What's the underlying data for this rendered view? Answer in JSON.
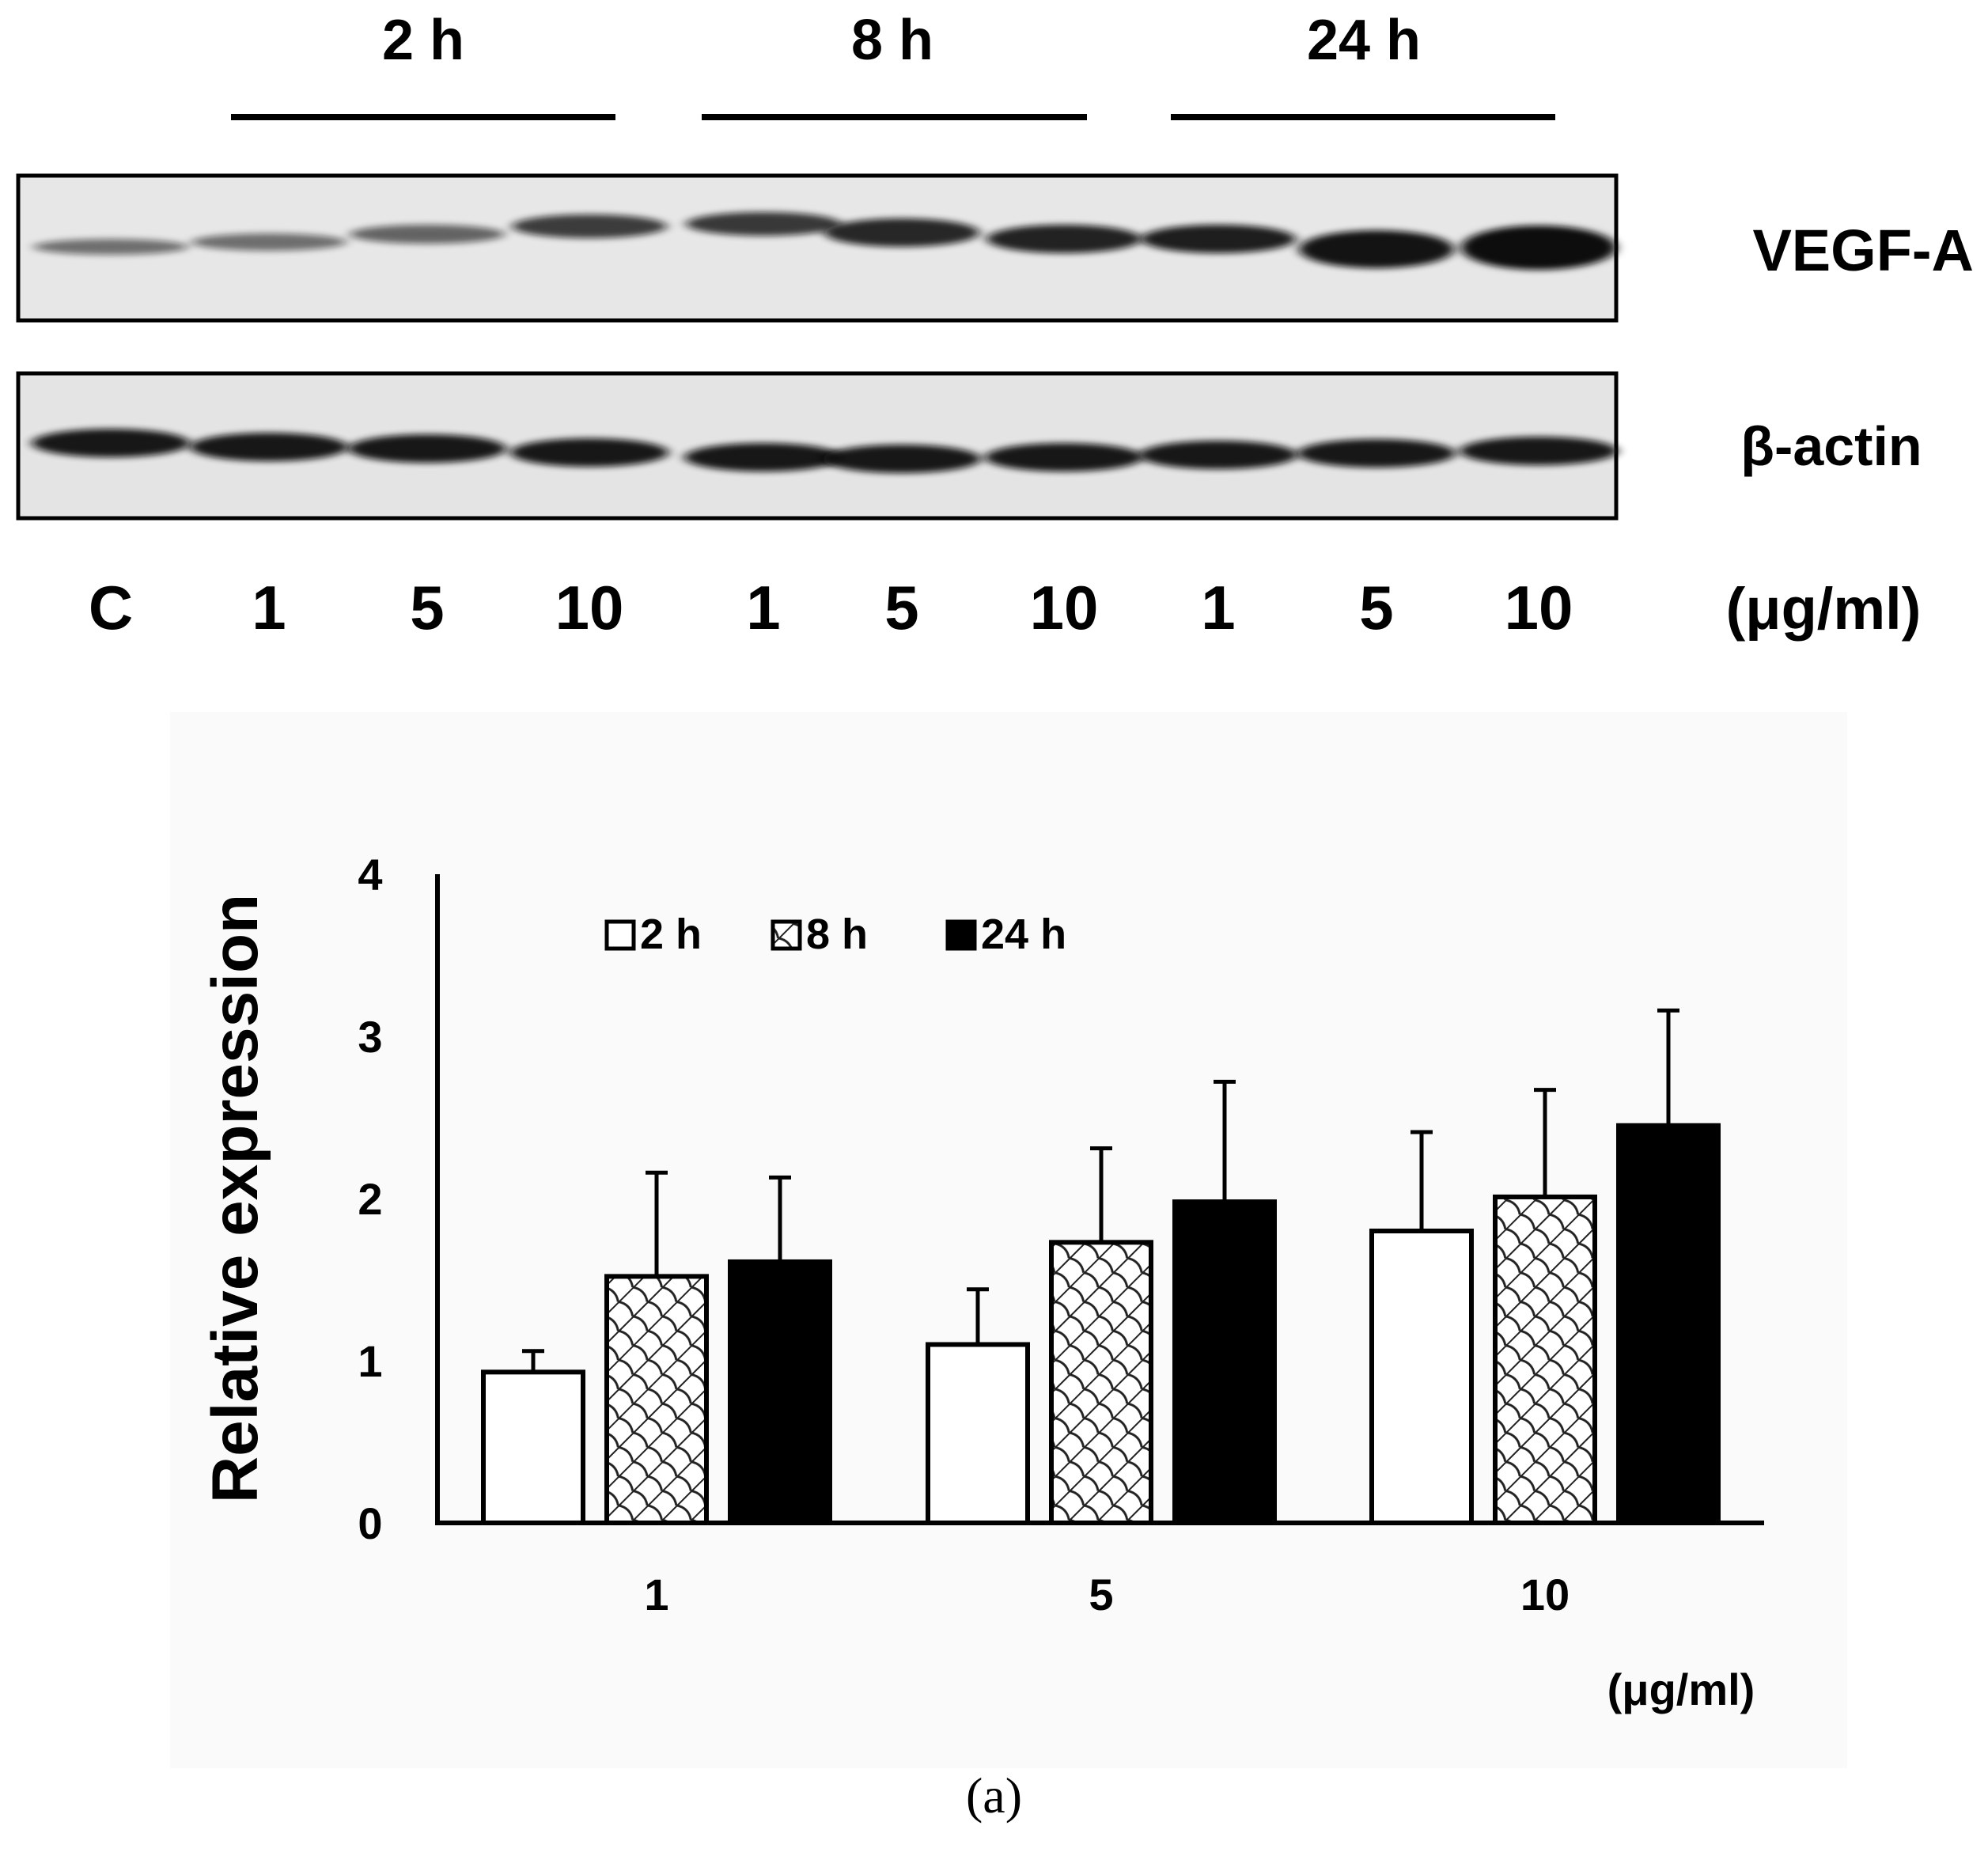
{
  "blot": {
    "time_groups": [
      "2 h",
      "8 h",
      "24 h"
    ],
    "proteins": [
      "VEGF-A",
      "β-actin"
    ],
    "lanes": [
      "C",
      "1",
      "5",
      "10",
      "1",
      "5",
      "10",
      "1",
      "5",
      "10"
    ],
    "unit": "(μg/ml)"
  },
  "chart_data": {
    "type": "bar",
    "title": "",
    "xlabel": "",
    "x_unit_label": "(μg/ml)",
    "ylabel": "Relative expression",
    "ylim": [
      0,
      4
    ],
    "yticks": [
      "0",
      "1",
      "2",
      "3",
      "4"
    ],
    "categories": [
      "1",
      "5",
      "10"
    ],
    "legend_position": "top-left",
    "series": [
      {
        "name": "2 h",
        "fill": "white",
        "values": [
          0.93,
          1.1,
          1.8
        ],
        "errors": [
          0.13,
          0.34,
          0.61
        ]
      },
      {
        "name": "8 h",
        "fill": "hatched",
        "values": [
          1.52,
          1.73,
          2.01
        ],
        "errors": [
          0.64,
          0.58,
          0.66
        ]
      },
      {
        "name": "24 h",
        "fill": "black",
        "values": [
          1.61,
          1.98,
          2.45
        ],
        "errors": [
          0.52,
          0.74,
          0.71
        ]
      }
    ]
  },
  "caption": "(a)"
}
